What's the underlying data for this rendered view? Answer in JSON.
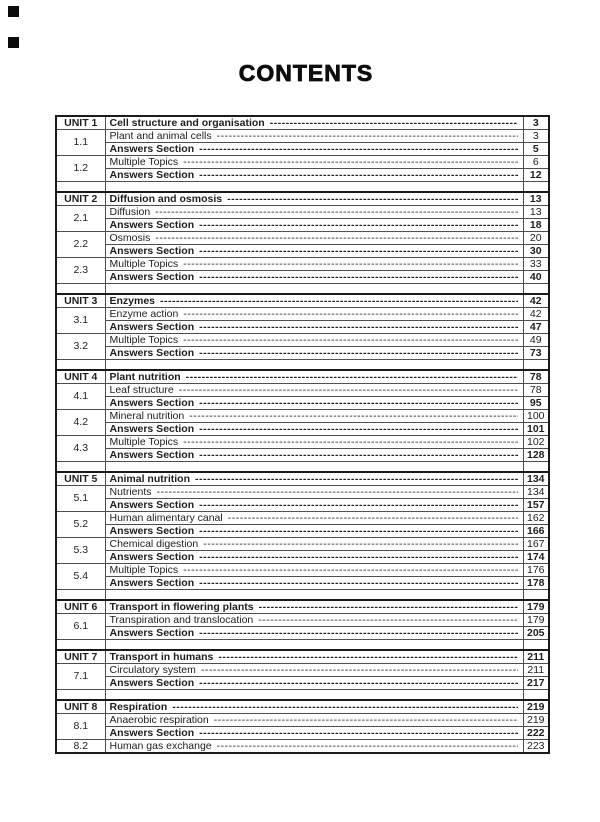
{
  "page": {
    "title": "CONTENTS"
  },
  "colors": {
    "ink": "#1e1e1e",
    "grid_line": "#4e4e4e",
    "heavy_line": "#1a1a1a",
    "background": "#ffffff"
  },
  "toc": {
    "units": [
      {
        "unit": "UNIT 1",
        "title": "Cell structure and organisation",
        "page": "3",
        "sections": [
          {
            "number": "1.1",
            "rows": [
              {
                "label": "Plant and animal cells",
                "page": "3",
                "bold": false
              },
              {
                "label": "Answers Section",
                "page": "5",
                "bold": true
              }
            ]
          },
          {
            "number": "1.2",
            "rows": [
              {
                "label": "Multiple Topics",
                "page": "6",
                "bold": false
              },
              {
                "label": "Answers Section",
                "page": "12",
                "bold": true
              }
            ]
          }
        ]
      },
      {
        "unit": "UNIT 2",
        "title": "Diffusion and osmosis",
        "page": "13",
        "sections": [
          {
            "number": "2.1",
            "rows": [
              {
                "label": "Diffusion",
                "page": "13",
                "bold": false
              },
              {
                "label": "Answers Section",
                "page": "18",
                "bold": true
              }
            ]
          },
          {
            "number": "2.2",
            "rows": [
              {
                "label": "Osmosis",
                "page": "20",
                "bold": false
              },
              {
                "label": "Answers Section",
                "page": "30",
                "bold": true
              }
            ]
          },
          {
            "number": "2.3",
            "rows": [
              {
                "label": "Multiple Topics",
                "page": "33",
                "bold": false
              },
              {
                "label": "Answers Section",
                "page": "40",
                "bold": true
              }
            ]
          }
        ]
      },
      {
        "unit": "UNIT 3",
        "title": "Enzymes",
        "page": "42",
        "sections": [
          {
            "number": "3.1",
            "rows": [
              {
                "label": "Enzyme action",
                "page": "42",
                "bold": false
              },
              {
                "label": "Answers Section",
                "page": "47",
                "bold": true
              }
            ]
          },
          {
            "number": "3.2",
            "rows": [
              {
                "label": "Multiple Topics",
                "page": "49",
                "bold": false
              },
              {
                "label": "Answers Section",
                "page": "73",
                "bold": true
              }
            ]
          }
        ]
      },
      {
        "unit": "UNIT 4",
        "title": "Plant nutrition",
        "page": "78",
        "sections": [
          {
            "number": "4.1",
            "rows": [
              {
                "label": "Leaf structure",
                "page": "78",
                "bold": false
              },
              {
                "label": "Answers Section",
                "page": "95",
                "bold": true
              }
            ]
          },
          {
            "number": "4.2",
            "rows": [
              {
                "label": "Mineral nutrition",
                "page": "100",
                "bold": false
              },
              {
                "label": "Answers Section",
                "page": "101",
                "bold": true
              }
            ]
          },
          {
            "number": "4.3",
            "rows": [
              {
                "label": "Multiple Topics",
                "page": "102",
                "bold": false
              },
              {
                "label": "Answers Section",
                "page": "128",
                "bold": true
              }
            ]
          }
        ]
      },
      {
        "unit": "UNIT 5",
        "title": "Animal nutrition",
        "page": "134",
        "sections": [
          {
            "number": "5.1",
            "rows": [
              {
                "label": "Nutrients",
                "page": "134",
                "bold": false
              },
              {
                "label": "Answers Section",
                "page": "157",
                "bold": true
              }
            ]
          },
          {
            "number": "5.2",
            "rows": [
              {
                "label": "Human alimentary canal",
                "page": "162",
                "bold": false
              },
              {
                "label": "Answers Section",
                "page": "166",
                "bold": true
              }
            ]
          },
          {
            "number": "5.3",
            "rows": [
              {
                "label": "Chemical digestion",
                "page": "167",
                "bold": false
              },
              {
                "label": "Answers Section",
                "page": "174",
                "bold": true
              }
            ]
          },
          {
            "number": "5.4",
            "rows": [
              {
                "label": "Multiple Topics",
                "page": "176",
                "bold": false
              },
              {
                "label": "Answers Section",
                "page": "178",
                "bold": true
              }
            ]
          }
        ]
      },
      {
        "unit": "UNIT 6",
        "title": "Transport in flowering plants",
        "page": "179",
        "sections": [
          {
            "number": "6.1",
            "rows": [
              {
                "label": "Transpiration and translocation",
                "page": "179",
                "bold": false
              },
              {
                "label": "Answers Section",
                "page": "205",
                "bold": true
              }
            ]
          }
        ]
      },
      {
        "unit": "UNIT 7",
        "title": "Transport in humans",
        "page": "211",
        "sections": [
          {
            "number": "7.1",
            "rows": [
              {
                "label": "Circulatory system",
                "page": "211",
                "bold": false
              },
              {
                "label": "Answers Section",
                "page": "217",
                "bold": true
              }
            ]
          }
        ]
      },
      {
        "unit": "UNIT 8",
        "title": "Respiration",
        "page": "219",
        "sections": [
          {
            "number": "8.1",
            "rows": [
              {
                "label": "Anaerobic respiration",
                "page": "219",
                "bold": false
              },
              {
                "label": "Answers Section",
                "page": "222",
                "bold": true
              }
            ]
          },
          {
            "number": "8.2",
            "rows": [
              {
                "label": "Human gas exchange",
                "page": "223",
                "bold": false
              }
            ]
          }
        ]
      }
    ]
  }
}
